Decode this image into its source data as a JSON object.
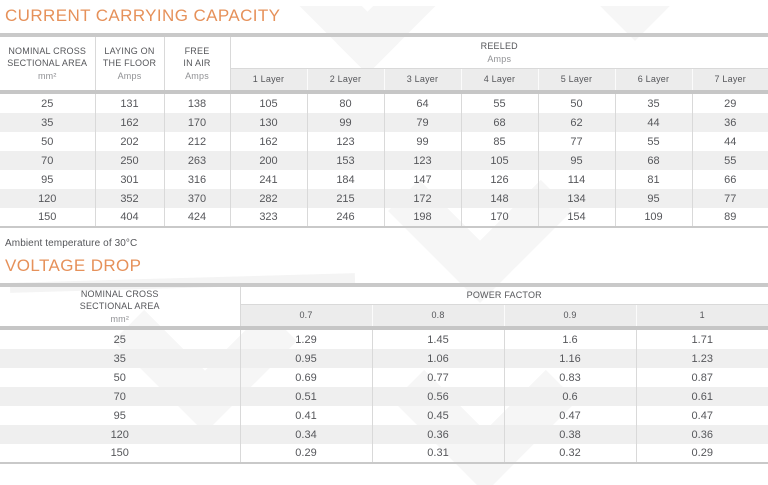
{
  "capacity_table": {
    "title": "CURRENT CARRYING CAPACITY",
    "columns": {
      "area": {
        "label": "NOMINAL CROSS\nSECTIONAL AREA",
        "unit": "mm²"
      },
      "floor": {
        "label": "LAYING ON\nTHE FLOOR",
        "unit": "Amps"
      },
      "air": {
        "label": "FREE\nIN AIR",
        "unit": "Amps"
      },
      "reeled": {
        "label": "REELED",
        "unit": "Amps",
        "layers": [
          "1 Layer",
          "2 Layer",
          "3 Layer",
          "4 Layer",
          "5 Layer",
          "6 Layer",
          "7 Layer"
        ]
      }
    },
    "rows": [
      [
        25,
        131,
        138,
        105,
        80,
        64,
        55,
        50,
        35,
        29
      ],
      [
        35,
        162,
        170,
        130,
        99,
        79,
        68,
        62,
        44,
        36
      ],
      [
        50,
        202,
        212,
        162,
        123,
        99,
        85,
        77,
        55,
        44
      ],
      [
        70,
        250,
        263,
        200,
        153,
        123,
        105,
        95,
        68,
        55
      ],
      [
        95,
        301,
        316,
        241,
        184,
        147,
        126,
        114,
        81,
        66
      ],
      [
        120,
        352,
        370,
        282,
        215,
        172,
        148,
        134,
        95,
        77
      ],
      [
        150,
        404,
        424,
        323,
        246,
        198,
        170,
        154,
        109,
        89
      ]
    ]
  },
  "note": "Ambient temperature of 30°C",
  "voltage_table": {
    "title": "VOLTAGE DROP",
    "columns": {
      "area": {
        "label": "NOMINAL CROSS\nSECTIONAL AREA",
        "unit": "mm²"
      },
      "power_factor": {
        "label": "POWER FACTOR",
        "factors": [
          "0.7",
          "0.8",
          "0.9",
          "1"
        ]
      }
    },
    "rows": [
      [
        "25",
        "1.29",
        "1.45",
        "1.6",
        "1.71"
      ],
      [
        "35",
        "0.95",
        "1.06",
        "1.16",
        "1.23"
      ],
      [
        "50",
        "0.69",
        "0.77",
        "0.83",
        "0.87"
      ],
      [
        "70",
        "0.51",
        "0.56",
        "0.6",
        "0.61"
      ],
      [
        "95",
        "0.41",
        "0.45",
        "0.47",
        "0.47"
      ],
      [
        "120",
        "0.34",
        "0.36",
        "0.38",
        "0.36"
      ],
      [
        "150",
        "0.29",
        "0.31",
        "0.32",
        "0.29"
      ]
    ]
  },
  "colors": {
    "accent_orange": "#e6915a",
    "header_text": "#55565a",
    "divider_gray": "#c9c9c9",
    "stripe_gray": "#efefef"
  }
}
